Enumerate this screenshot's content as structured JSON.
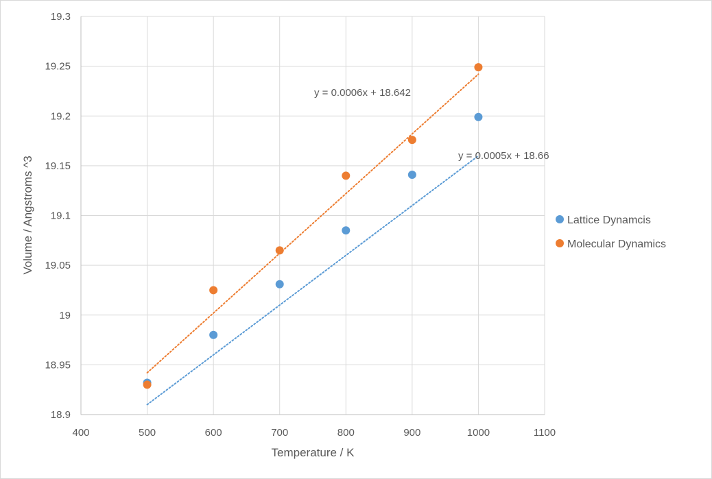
{
  "chart_data": {
    "type": "scatter",
    "title": "",
    "xlabel": "Temperature / K",
    "ylabel": "Volume / Angstroms ^3",
    "xlim": [
      400,
      1100
    ],
    "ylim": [
      18.9,
      19.3
    ],
    "x_ticks": [
      400,
      500,
      600,
      700,
      800,
      900,
      1000,
      1100
    ],
    "y_ticks": [
      18.9,
      18.95,
      19,
      19.05,
      19.1,
      19.15,
      19.2,
      19.25,
      19.3
    ],
    "x_tick_labels": [
      "400",
      "500",
      "600",
      "700",
      "800",
      "900",
      "1000",
      "1100"
    ],
    "y_tick_labels": [
      "18.9",
      "18.95",
      "19",
      "19.05",
      "19.1",
      "19.15",
      "19.2",
      "19.25",
      "19.3"
    ],
    "grid": true,
    "legend_position": "right",
    "series": [
      {
        "name": "Lattice Dynamcis",
        "color": "#5b9bd5",
        "x": [
          500,
          600,
          700,
          800,
          900,
          1000
        ],
        "y": [
          18.932,
          18.98,
          19.031,
          19.085,
          19.141,
          19.199
        ],
        "trendline": {
          "slope": 0.0005,
          "intercept": 18.66,
          "equation": "y = 0.0005x + 18.66"
        }
      },
      {
        "name": "Molecular Dynamics",
        "color": "#ed7d31",
        "x": [
          500,
          600,
          700,
          800,
          900,
          1000
        ],
        "y": [
          18.93,
          19.025,
          19.065,
          19.14,
          19.176,
          19.249
        ],
        "trendline": {
          "slope": 0.0006,
          "intercept": 18.642,
          "equation": "y = 0.0006x + 18.642"
        }
      }
    ]
  }
}
